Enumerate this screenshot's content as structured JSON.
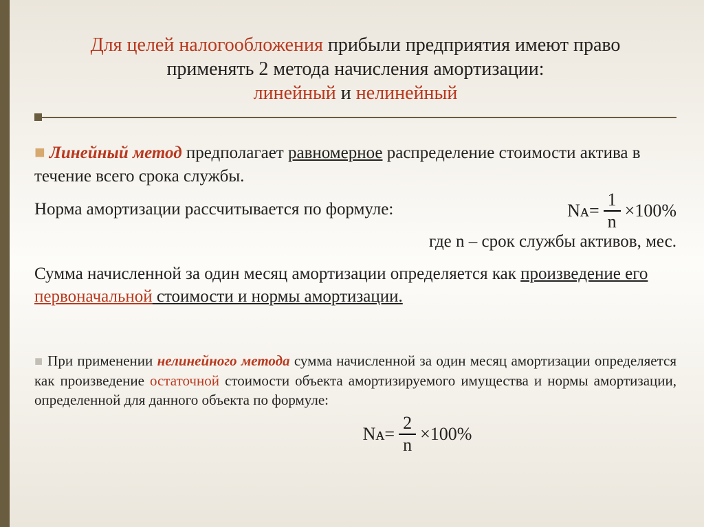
{
  "colors": {
    "bg_top": "#ebe6dc",
    "bg_mid": "#fdfcf9",
    "sidebar": "#6a5c3f",
    "red": "#b9381e",
    "text": "#242220",
    "bullet_large": "#d7a96f",
    "bullet_small": "#c0beb5"
  },
  "title": {
    "l1a": "Для целей налогообложения",
    "l1b": " прибыли предприятия имеют право",
    "l2": "применять 2 метода начисления амортизации:",
    "l3a": "линейный",
    "l3b": " и ",
    "l3c": "нелинейный"
  },
  "linear": {
    "methodLabel": "Линейный метод",
    "p1a": " предполагает ",
    "p1b": "равномерное",
    "p1c": " распределение стоимости актива в течение всего срока службы.",
    "p2": "Норма амортизации рассчитывается по формуле:",
    "formula": {
      "lhs": "Nᴀ",
      "eq": " = ",
      "num": "1",
      "den": "n",
      "tail": "×100%"
    },
    "where": "где n – срок службы активов, мес.",
    "p3a": "Сумма начисленной за один месяц амортизации определяется как ",
    "p3b": "произведение его ",
    "p3c": "первоначальной",
    "p3d": " стоимости и нормы амортизации."
  },
  "nonlinear": {
    "p1a": "При применении ",
    "methodLabel": "нелинейного метода",
    "p1b": " сумма начисленной за один месяц амортизации определяется как произведение ",
    "p1c": "остаточной",
    "p1d": " стоимости объекта амортизируемого имущества и нормы амортизации, определенной для данного объекта по формуле:",
    "formula": {
      "lhs": "Nᴀ",
      "eq": " = ",
      "num": "2",
      "den": "n",
      "tail": "×100%"
    }
  }
}
